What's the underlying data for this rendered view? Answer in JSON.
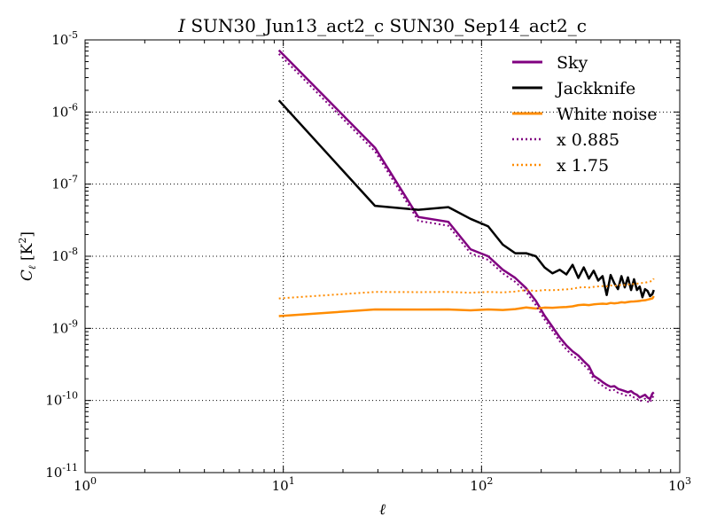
{
  "chart_data": {
    "type": "line",
    "title": {
      "italic": "I",
      "text": " SUN30_Jun13_act2_c SUN30_Sep14_act2_c"
    },
    "xlabel": "ℓ",
    "ylabel": {
      "main": "C",
      "sub": "ℓ",
      "units": " [K",
      "sup": "2",
      "close": "]"
    },
    "xscale": "log",
    "yscale": "log",
    "xlim": [
      1,
      1000
    ],
    "ylim": [
      1e-11,
      1e-05
    ],
    "grid": true,
    "legend_position": "top-right",
    "x_ticks": [
      {
        "value": 1,
        "base": "10",
        "exp": "0"
      },
      {
        "value": 10,
        "base": "10",
        "exp": "1"
      },
      {
        "value": 100,
        "base": "10",
        "exp": "2"
      },
      {
        "value": 1000,
        "base": "10",
        "exp": "3"
      }
    ],
    "y_ticks": [
      {
        "value": 1e-11,
        "base": "10",
        "exp": "-11"
      },
      {
        "value": 1e-10,
        "base": "10",
        "exp": "-10"
      },
      {
        "value": 1e-09,
        "base": "10",
        "exp": "-9"
      },
      {
        "value": 1e-08,
        "base": "10",
        "exp": "-8"
      },
      {
        "value": 1e-07,
        "base": "10",
        "exp": "-7"
      },
      {
        "value": 1e-06,
        "base": "10",
        "exp": "-6"
      },
      {
        "value": 1e-05,
        "base": "10",
        "exp": "-5"
      }
    ],
    "series": [
      {
        "name": "Sky",
        "color": "#800080",
        "style": "solid",
        "width": 2.5,
        "points": [
          [
            9.5,
            7.2e-06
          ],
          [
            29,
            3.2e-07
          ],
          [
            48,
            3.5e-08
          ],
          [
            68,
            3e-08
          ],
          [
            88,
            1.25e-08
          ],
          [
            108,
            1e-08
          ],
          [
            128,
            6.5e-09
          ],
          [
            148,
            5e-09
          ],
          [
            168,
            3.6e-09
          ],
          [
            188,
            2.4e-09
          ],
          [
            208,
            1.5e-09
          ],
          [
            228,
            1.05e-09
          ],
          [
            248,
            7.5e-10
          ],
          [
            268,
            5.8e-10
          ],
          [
            288,
            4.8e-10
          ],
          [
            308,
            4.2e-10
          ],
          [
            328,
            3.5e-10
          ],
          [
            348,
            3e-10
          ],
          [
            368,
            2.2e-10
          ],
          [
            388,
            2e-10
          ],
          [
            408,
            1.8e-10
          ],
          [
            428,
            1.65e-10
          ],
          [
            448,
            1.55e-10
          ],
          [
            468,
            1.58e-10
          ],
          [
            488,
            1.45e-10
          ],
          [
            508,
            1.4e-10
          ],
          [
            528,
            1.35e-10
          ],
          [
            548,
            1.3e-10
          ],
          [
            568,
            1.35e-10
          ],
          [
            588,
            1.25e-10
          ],
          [
            608,
            1.2e-10
          ],
          [
            628,
            1.1e-10
          ],
          [
            648,
            1.15e-10
          ],
          [
            668,
            1.2e-10
          ],
          [
            688,
            1.1e-10
          ],
          [
            708,
            1.05e-10
          ],
          [
            728,
            1.25e-10
          ],
          [
            740,
            1.3e-10
          ]
        ]
      },
      {
        "name": "Jackknife",
        "color": "#000000",
        "style": "solid",
        "width": 2.5,
        "points": [
          [
            9.5,
            1.45e-06
          ],
          [
            29,
            5e-08
          ],
          [
            48,
            4.4e-08
          ],
          [
            68,
            4.8e-08
          ],
          [
            88,
            3.3e-08
          ],
          [
            108,
            2.6e-08
          ],
          [
            128,
            1.45e-08
          ],
          [
            148,
            1.1e-08
          ],
          [
            168,
            1.1e-08
          ],
          [
            188,
            1e-08
          ],
          [
            208,
            7e-09
          ],
          [
            228,
            5.8e-09
          ],
          [
            248,
            6.5e-09
          ],
          [
            268,
            5.6e-09
          ],
          [
            288,
            7.6e-09
          ],
          [
            308,
            5e-09
          ],
          [
            328,
            7e-09
          ],
          [
            348,
            4.9e-09
          ],
          [
            368,
            6.3e-09
          ],
          [
            388,
            4.6e-09
          ],
          [
            408,
            5.3e-09
          ],
          [
            428,
            2.9e-09
          ],
          [
            448,
            5.5e-09
          ],
          [
            468,
            4.2e-09
          ],
          [
            488,
            3.5e-09
          ],
          [
            508,
            5.3e-09
          ],
          [
            528,
            3.7e-09
          ],
          [
            548,
            5.1e-09
          ],
          [
            568,
            3.4e-09
          ],
          [
            588,
            4.8e-09
          ],
          [
            608,
            3.4e-09
          ],
          [
            628,
            3.8e-09
          ],
          [
            648,
            2.7e-09
          ],
          [
            668,
            3.5e-09
          ],
          [
            688,
            3.3e-09
          ],
          [
            708,
            2.8e-09
          ],
          [
            728,
            3e-09
          ],
          [
            740,
            3.4e-09
          ]
        ]
      },
      {
        "name": "White noise",
        "color": "#ff8c00",
        "style": "solid",
        "width": 2.5,
        "points": [
          [
            9.5,
            1.48e-09
          ],
          [
            29,
            1.83e-09
          ],
          [
            48,
            1.82e-09
          ],
          [
            68,
            1.83e-09
          ],
          [
            88,
            1.78e-09
          ],
          [
            108,
            1.83e-09
          ],
          [
            128,
            1.8e-09
          ],
          [
            148,
            1.85e-09
          ],
          [
            168,
            1.95e-09
          ],
          [
            188,
            1.88e-09
          ],
          [
            208,
            1.94e-09
          ],
          [
            228,
            1.93e-09
          ],
          [
            248,
            1.96e-09
          ],
          [
            268,
            1.98e-09
          ],
          [
            288,
            2.02e-09
          ],
          [
            308,
            2.1e-09
          ],
          [
            328,
            2.13e-09
          ],
          [
            348,
            2.1e-09
          ],
          [
            368,
            2.15e-09
          ],
          [
            388,
            2.18e-09
          ],
          [
            408,
            2.2e-09
          ],
          [
            428,
            2.18e-09
          ],
          [
            448,
            2.25e-09
          ],
          [
            468,
            2.22e-09
          ],
          [
            488,
            2.25e-09
          ],
          [
            508,
            2.3e-09
          ],
          [
            528,
            2.28e-09
          ],
          [
            548,
            2.32e-09
          ],
          [
            568,
            2.35e-09
          ],
          [
            588,
            2.36e-09
          ],
          [
            608,
            2.38e-09
          ],
          [
            628,
            2.4e-09
          ],
          [
            648,
            2.44e-09
          ],
          [
            668,
            2.45e-09
          ],
          [
            688,
            2.5e-09
          ],
          [
            708,
            2.55e-09
          ],
          [
            728,
            2.6e-09
          ],
          [
            740,
            2.8e-09
          ]
        ]
      },
      {
        "name": "x 0.885",
        "color": "#800080",
        "style": "dotted",
        "width": 2,
        "points": [
          [
            9.5,
            6.4e-06
          ],
          [
            29,
            2.85e-07
          ],
          [
            48,
            3.1e-08
          ],
          [
            68,
            2.65e-08
          ],
          [
            88,
            1.1e-08
          ],
          [
            108,
            8.9e-09
          ],
          [
            128,
            5.8e-09
          ],
          [
            148,
            4.4e-09
          ],
          [
            168,
            3.2e-09
          ],
          [
            188,
            2.1e-09
          ],
          [
            208,
            1.33e-09
          ],
          [
            228,
            9.3e-10
          ],
          [
            248,
            6.6e-10
          ],
          [
            268,
            5.1e-10
          ],
          [
            288,
            4.2e-10
          ],
          [
            308,
            3.7e-10
          ],
          [
            328,
            3.1e-10
          ],
          [
            348,
            2.65e-10
          ],
          [
            368,
            1.95e-10
          ],
          [
            388,
            1.77e-10
          ],
          [
            408,
            1.6e-10
          ],
          [
            428,
            1.46e-10
          ],
          [
            448,
            1.37e-10
          ],
          [
            468,
            1.4e-10
          ],
          [
            488,
            1.28e-10
          ],
          [
            508,
            1.24e-10
          ],
          [
            528,
            1.19e-10
          ],
          [
            548,
            1.15e-10
          ],
          [
            568,
            1.19e-10
          ],
          [
            588,
            1.1e-10
          ],
          [
            608,
            1.06e-10
          ],
          [
            628,
            9.7e-11
          ],
          [
            648,
            1.02e-10
          ],
          [
            668,
            1.06e-10
          ],
          [
            688,
            9.7e-11
          ],
          [
            708,
            9.3e-11
          ],
          [
            728,
            1.1e-10
          ],
          [
            740,
            1.15e-10
          ]
        ]
      },
      {
        "name": "x 1.75",
        "color": "#ff8c00",
        "style": "dotted",
        "width": 2,
        "points": [
          [
            9.5,
            2.6e-09
          ],
          [
            29,
            3.2e-09
          ],
          [
            48,
            3.18e-09
          ],
          [
            68,
            3.2e-09
          ],
          [
            88,
            3.12e-09
          ],
          [
            108,
            3.2e-09
          ],
          [
            128,
            3.15e-09
          ],
          [
            148,
            3.24e-09
          ],
          [
            168,
            3.4e-09
          ],
          [
            188,
            3.3e-09
          ],
          [
            208,
            3.4e-09
          ],
          [
            228,
            3.38e-09
          ],
          [
            248,
            3.43e-09
          ],
          [
            268,
            3.47e-09
          ],
          [
            288,
            3.54e-09
          ],
          [
            308,
            3.68e-09
          ],
          [
            328,
            3.73e-09
          ],
          [
            348,
            3.68e-09
          ],
          [
            368,
            3.76e-09
          ],
          [
            388,
            3.82e-09
          ],
          [
            408,
            3.85e-09
          ],
          [
            428,
            3.82e-09
          ],
          [
            448,
            3.94e-09
          ],
          [
            468,
            3.89e-09
          ],
          [
            488,
            3.94e-09
          ],
          [
            508,
            4.03e-09
          ],
          [
            528,
            3.99e-09
          ],
          [
            548,
            4.06e-09
          ],
          [
            568,
            4.11e-09
          ],
          [
            588,
            4.13e-09
          ],
          [
            608,
            4.17e-09
          ],
          [
            628,
            4.2e-09
          ],
          [
            648,
            4.27e-09
          ],
          [
            668,
            4.29e-09
          ],
          [
            688,
            4.38e-09
          ],
          [
            708,
            4.46e-09
          ],
          [
            728,
            4.55e-09
          ],
          [
            740,
            4.9e-09
          ]
        ]
      }
    ]
  }
}
